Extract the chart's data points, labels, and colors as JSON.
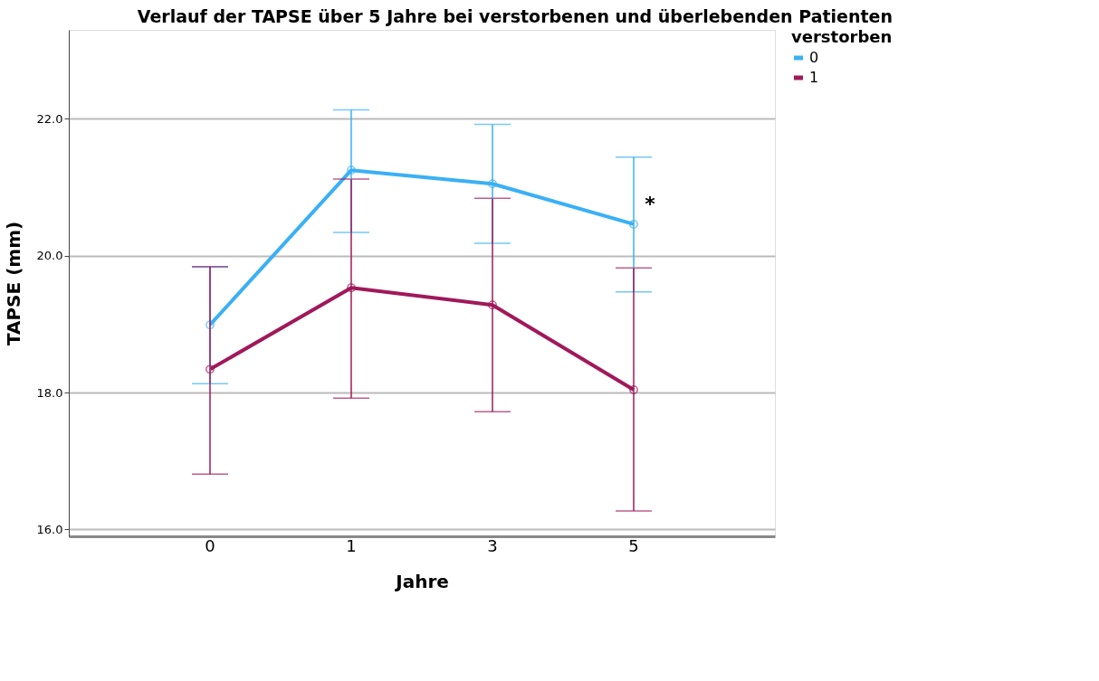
{
  "chart_data": {
    "type": "line",
    "title": "Verlauf der TAPSE über 5 Jahre bei verstorbenen und überlebenden Patienten",
    "xlabel": "Jahre",
    "ylabel": "TAPSE (mm)",
    "legend_title": "verstorben",
    "categories": [
      "0",
      "1",
      "3",
      "5"
    ],
    "series": [
      {
        "name": "0",
        "color": "#3ab0f5",
        "values": [
          18.99,
          21.25,
          21.05,
          20.46
        ],
        "errors": [
          [
            18.13,
            19.83
          ],
          [
            20.34,
            22.13
          ],
          [
            20.18,
            21.92
          ],
          [
            19.47,
            21.44
          ]
        ]
      },
      {
        "name": "1",
        "color": "#a0195a",
        "values": [
          18.34,
          19.53,
          19.28,
          18.04
        ],
        "errors": [
          [
            16.81,
            19.84
          ],
          [
            17.92,
            21.12
          ],
          [
            17.72,
            20.84
          ],
          [
            16.27,
            19.82
          ]
        ]
      }
    ],
    "ylim": [
      15.9,
      23.3
    ],
    "yticks": [
      {
        "value": 16,
        "label": "16.0"
      },
      {
        "value": 18,
        "label": "18.0"
      },
      {
        "value": 20,
        "label": "20.0"
      },
      {
        "value": 22,
        "label": "22.0"
      }
    ],
    "grid": "y",
    "legend": "top right",
    "marker": "circle",
    "line_style": "solid",
    "annotations": [
      {
        "text": "*",
        "x": "5",
        "y": 20.75
      }
    ]
  }
}
